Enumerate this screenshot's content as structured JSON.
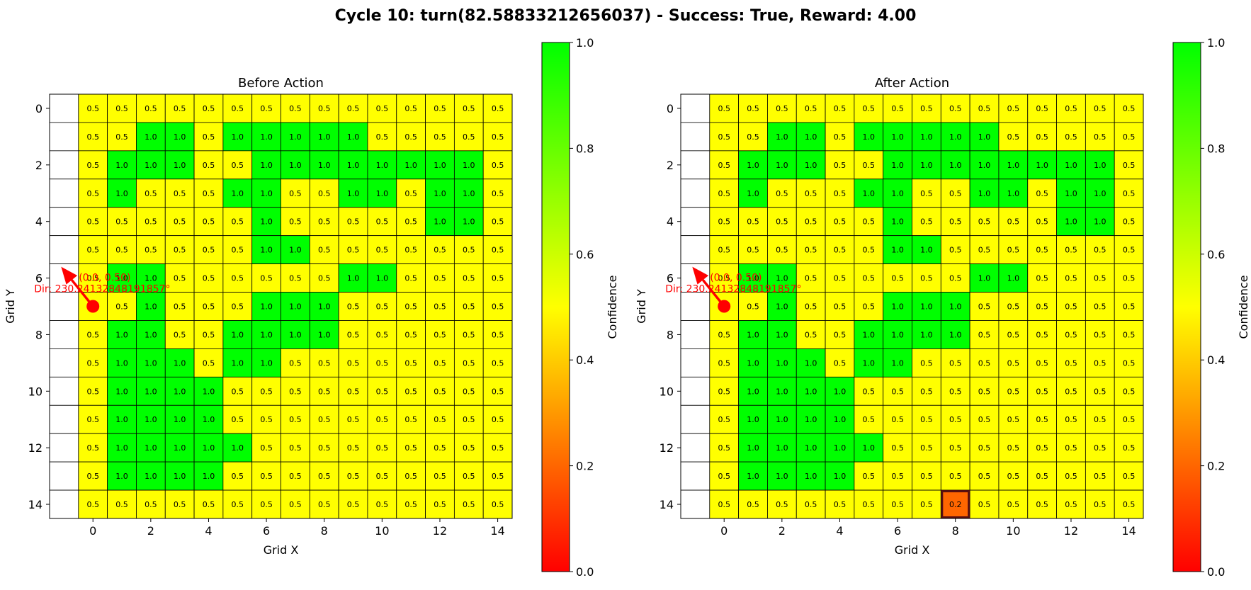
{
  "title": "Cycle 10: turn(82.58833212656037) - Success: True, Reward: 4.00",
  "colors": {
    "low": "#ff0000",
    "mid": "#ffff00",
    "high": "#00ff00",
    "agent": "#ff0000",
    "grid_line": "#000000",
    "highlight_border": "#5a0f0f"
  },
  "chart_data": [
    {
      "type": "heatmap",
      "title": "Before Action",
      "xlabel": "Grid X",
      "ylabel": "Grid Y",
      "x_ticks": [
        0,
        2,
        4,
        6,
        8,
        10,
        12,
        14
      ],
      "y_ticks": [
        0,
        2,
        4,
        6,
        8,
        10,
        12,
        14
      ],
      "xlim": [
        -1.5,
        14.5
      ],
      "ylim": [
        14.5,
        -0.5
      ],
      "empty_column": -1,
      "values": [
        [
          0.5,
          0.5,
          0.5,
          0.5,
          0.5,
          0.5,
          0.5,
          0.5,
          0.5,
          0.5,
          0.5,
          0.5,
          0.5,
          0.5,
          0.5
        ],
        [
          0.5,
          0.5,
          1.0,
          1.0,
          0.5,
          1.0,
          1.0,
          1.0,
          1.0,
          1.0,
          0.5,
          0.5,
          0.5,
          0.5,
          0.5
        ],
        [
          0.5,
          1.0,
          1.0,
          1.0,
          0.5,
          0.5,
          1.0,
          1.0,
          1.0,
          1.0,
          1.0,
          1.0,
          1.0,
          1.0,
          0.5
        ],
        [
          0.5,
          1.0,
          0.5,
          0.5,
          0.5,
          1.0,
          1.0,
          0.5,
          0.5,
          1.0,
          1.0,
          0.5,
          1.0,
          1.0,
          0.5
        ],
        [
          0.5,
          0.5,
          0.5,
          0.5,
          0.5,
          0.5,
          1.0,
          0.5,
          0.5,
          0.5,
          0.5,
          0.5,
          1.0,
          1.0,
          0.5
        ],
        [
          0.5,
          0.5,
          0.5,
          0.5,
          0.5,
          0.5,
          1.0,
          1.0,
          0.5,
          0.5,
          0.5,
          0.5,
          0.5,
          0.5,
          0.5
        ],
        [
          0.5,
          1.0,
          1.0,
          0.5,
          0.5,
          0.5,
          0.5,
          0.5,
          0.5,
          1.0,
          1.0,
          0.5,
          0.5,
          0.5,
          0.5
        ],
        [
          0.5,
          0.5,
          1.0,
          0.5,
          0.5,
          0.5,
          1.0,
          1.0,
          1.0,
          0.5,
          0.5,
          0.5,
          0.5,
          0.5,
          0.5
        ],
        [
          0.5,
          1.0,
          1.0,
          0.5,
          0.5,
          1.0,
          1.0,
          1.0,
          1.0,
          0.5,
          0.5,
          0.5,
          0.5,
          0.5,
          0.5
        ],
        [
          0.5,
          1.0,
          1.0,
          1.0,
          0.5,
          1.0,
          1.0,
          0.5,
          0.5,
          0.5,
          0.5,
          0.5,
          0.5,
          0.5,
          0.5
        ],
        [
          0.5,
          1.0,
          1.0,
          1.0,
          1.0,
          0.5,
          0.5,
          0.5,
          0.5,
          0.5,
          0.5,
          0.5,
          0.5,
          0.5,
          0.5
        ],
        [
          0.5,
          1.0,
          1.0,
          1.0,
          1.0,
          0.5,
          0.5,
          0.5,
          0.5,
          0.5,
          0.5,
          0.5,
          0.5,
          0.5,
          0.5
        ],
        [
          0.5,
          1.0,
          1.0,
          1.0,
          1.0,
          1.0,
          0.5,
          0.5,
          0.5,
          0.5,
          0.5,
          0.5,
          0.5,
          0.5,
          0.5
        ],
        [
          0.5,
          1.0,
          1.0,
          1.0,
          1.0,
          0.5,
          0.5,
          0.5,
          0.5,
          0.5,
          0.5,
          0.5,
          0.5,
          0.5,
          0.5
        ],
        [
          0.5,
          0.5,
          0.5,
          0.5,
          0.5,
          0.5,
          0.5,
          0.5,
          0.5,
          0.5,
          0.5,
          0.5,
          0.5,
          0.5,
          0.5
        ]
      ],
      "highlight_cell": null,
      "agent": {
        "x": 0,
        "y": 7,
        "arrow_to": [
          -1.1,
          5.6
        ],
        "label_pos": "(0.0, 0.50)",
        "label_dir": "Dir: 230.24132848191857°"
      },
      "colorbar": {
        "label": "Confidence",
        "min": 0.0,
        "max": 1.0,
        "ticks": [
          0.0,
          0.2,
          0.4,
          0.6,
          0.8,
          1.0
        ]
      }
    },
    {
      "type": "heatmap",
      "title": "After Action",
      "xlabel": "Grid X",
      "ylabel": "Grid Y",
      "x_ticks": [
        0,
        2,
        4,
        6,
        8,
        10,
        12,
        14
      ],
      "y_ticks": [
        0,
        2,
        4,
        6,
        8,
        10,
        12,
        14
      ],
      "xlim": [
        -1.5,
        14.5
      ],
      "ylim": [
        14.5,
        -0.5
      ],
      "empty_column": -1,
      "values": [
        [
          0.5,
          0.5,
          0.5,
          0.5,
          0.5,
          0.5,
          0.5,
          0.5,
          0.5,
          0.5,
          0.5,
          0.5,
          0.5,
          0.5,
          0.5
        ],
        [
          0.5,
          0.5,
          1.0,
          1.0,
          0.5,
          1.0,
          1.0,
          1.0,
          1.0,
          1.0,
          0.5,
          0.5,
          0.5,
          0.5,
          0.5
        ],
        [
          0.5,
          1.0,
          1.0,
          1.0,
          0.5,
          0.5,
          1.0,
          1.0,
          1.0,
          1.0,
          1.0,
          1.0,
          1.0,
          1.0,
          0.5
        ],
        [
          0.5,
          1.0,
          0.5,
          0.5,
          0.5,
          1.0,
          1.0,
          0.5,
          0.5,
          1.0,
          1.0,
          0.5,
          1.0,
          1.0,
          0.5
        ],
        [
          0.5,
          0.5,
          0.5,
          0.5,
          0.5,
          0.5,
          1.0,
          0.5,
          0.5,
          0.5,
          0.5,
          0.5,
          1.0,
          1.0,
          0.5
        ],
        [
          0.5,
          0.5,
          0.5,
          0.5,
          0.5,
          0.5,
          1.0,
          1.0,
          0.5,
          0.5,
          0.5,
          0.5,
          0.5,
          0.5,
          0.5
        ],
        [
          0.5,
          1.0,
          1.0,
          0.5,
          0.5,
          0.5,
          0.5,
          0.5,
          0.5,
          1.0,
          1.0,
          0.5,
          0.5,
          0.5,
          0.5
        ],
        [
          0.5,
          0.5,
          1.0,
          0.5,
          0.5,
          0.5,
          1.0,
          1.0,
          1.0,
          0.5,
          0.5,
          0.5,
          0.5,
          0.5,
          0.5
        ],
        [
          0.5,
          1.0,
          1.0,
          0.5,
          0.5,
          1.0,
          1.0,
          1.0,
          1.0,
          0.5,
          0.5,
          0.5,
          0.5,
          0.5,
          0.5
        ],
        [
          0.5,
          1.0,
          1.0,
          1.0,
          0.5,
          1.0,
          1.0,
          0.5,
          0.5,
          0.5,
          0.5,
          0.5,
          0.5,
          0.5,
          0.5
        ],
        [
          0.5,
          1.0,
          1.0,
          1.0,
          1.0,
          0.5,
          0.5,
          0.5,
          0.5,
          0.5,
          0.5,
          0.5,
          0.5,
          0.5,
          0.5
        ],
        [
          0.5,
          1.0,
          1.0,
          1.0,
          1.0,
          0.5,
          0.5,
          0.5,
          0.5,
          0.5,
          0.5,
          0.5,
          0.5,
          0.5,
          0.5
        ],
        [
          0.5,
          1.0,
          1.0,
          1.0,
          1.0,
          1.0,
          0.5,
          0.5,
          0.5,
          0.5,
          0.5,
          0.5,
          0.5,
          0.5,
          0.5
        ],
        [
          0.5,
          1.0,
          1.0,
          1.0,
          1.0,
          0.5,
          0.5,
          0.5,
          0.5,
          0.5,
          0.5,
          0.5,
          0.5,
          0.5,
          0.5
        ],
        [
          0.5,
          0.5,
          0.5,
          0.5,
          0.5,
          0.5,
          0.5,
          0.5,
          0.2,
          0.5,
          0.5,
          0.5,
          0.5,
          0.5,
          0.5
        ]
      ],
      "highlight_cell": [
        8,
        14
      ],
      "agent": {
        "x": 0,
        "y": 7,
        "arrow_to": [
          -1.1,
          5.6
        ],
        "label_pos": "(0.0, 0.50)",
        "label_dir": "Dir: 230.24132848191857°"
      },
      "colorbar": {
        "label": "Confidence",
        "min": 0.0,
        "max": 1.0,
        "ticks": [
          0.0,
          0.2,
          0.4,
          0.6,
          0.8,
          1.0
        ]
      }
    }
  ]
}
